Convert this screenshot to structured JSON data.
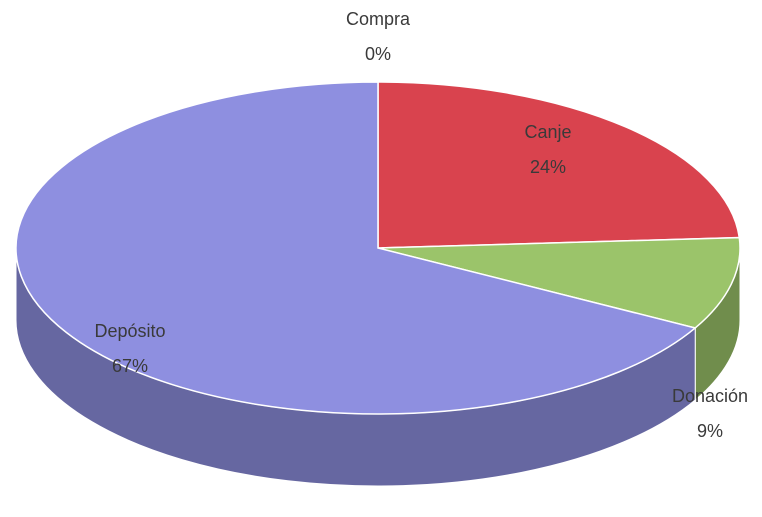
{
  "chart_data": {
    "type": "pie",
    "categories": [
      "Compra",
      "Canje",
      "Donación",
      "Depósito"
    ],
    "values": [
      0,
      24,
      9,
      67
    ],
    "value_labels": [
      "0%",
      "24%",
      "9%",
      "67%"
    ],
    "colors": [
      "#4f81bd",
      "#d9434e",
      "#9bc46a",
      "#8e8fe0"
    ]
  }
}
